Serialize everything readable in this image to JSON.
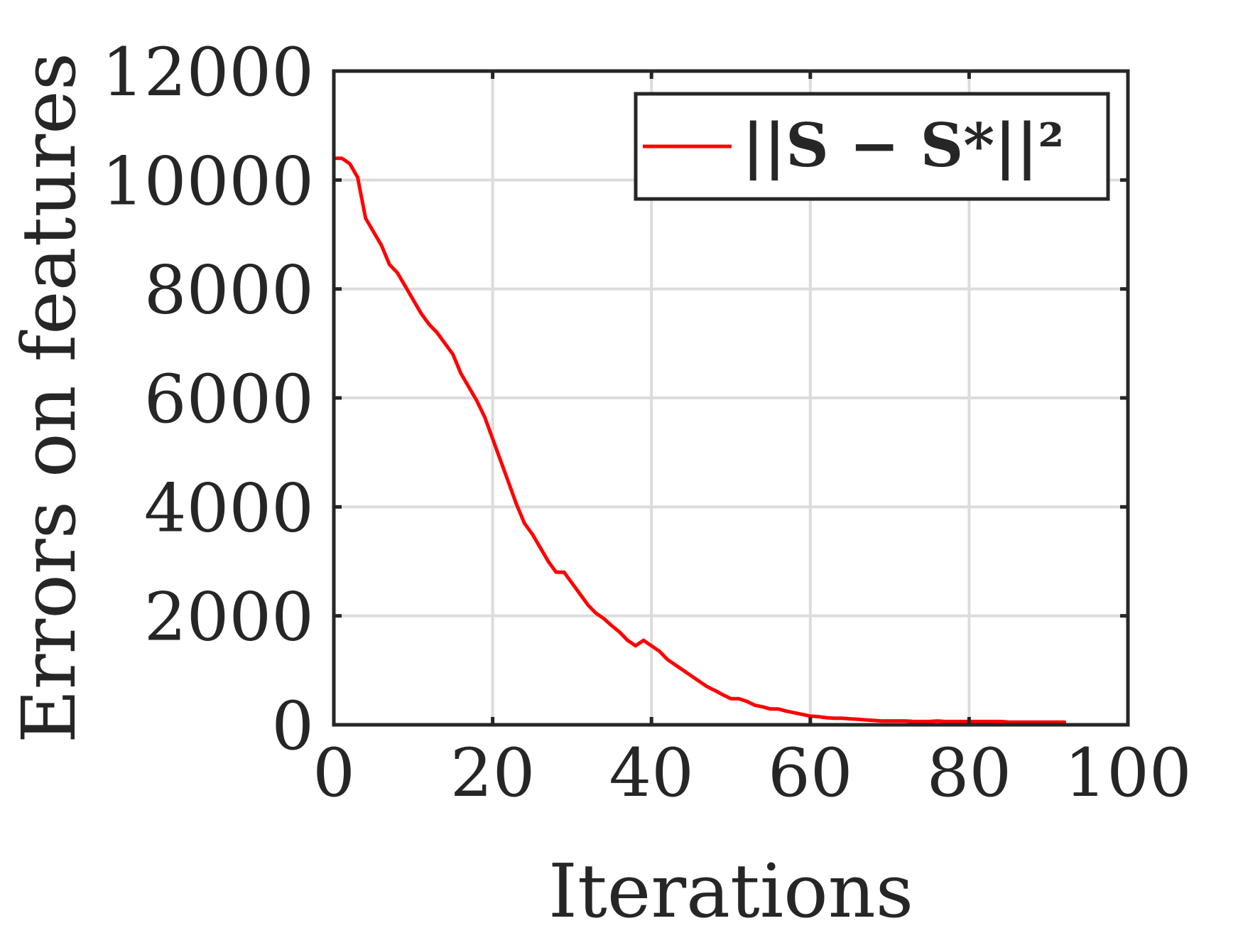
{
  "chart_data": {
    "type": "line",
    "title": "",
    "xlabel": "Iterations",
    "ylabel": "Errors on features",
    "xlim": [
      0,
      100
    ],
    "ylim": [
      0,
      12000
    ],
    "xticks": [
      0,
      20,
      40,
      60,
      80,
      100
    ],
    "yticks": [
      0,
      2000,
      4000,
      6000,
      8000,
      10000,
      12000
    ],
    "xtick_labels": [
      "0",
      "20",
      "40",
      "60",
      "80",
      "100"
    ],
    "ytick_labels": [
      "0",
      "2000",
      "4000",
      "6000",
      "8000",
      "10000",
      "12000"
    ],
    "grid": true,
    "legend_position": "top-right",
    "series": [
      {
        "name": "||S − S*||²",
        "color": "#ff0000",
        "x": [
          0,
          1,
          2,
          3,
          4,
          5,
          6,
          7,
          8,
          9,
          10,
          11,
          12,
          13,
          14,
          15,
          16,
          17,
          18,
          19,
          20,
          21,
          22,
          23,
          24,
          25,
          26,
          27,
          28,
          29,
          30,
          31,
          32,
          33,
          34,
          35,
          36,
          37,
          38,
          39,
          40,
          41,
          42,
          43,
          44,
          45,
          46,
          47,
          48,
          49,
          50,
          51,
          52,
          53,
          54,
          55,
          56,
          57,
          58,
          59,
          60,
          61,
          62,
          63,
          64,
          65,
          66,
          67,
          68,
          69,
          70,
          71,
          72,
          73,
          74,
          75,
          76,
          77,
          78,
          79,
          80,
          81,
          82,
          83,
          84,
          85,
          86,
          87,
          88,
          89,
          90,
          91,
          92
        ],
        "y": [
          10400,
          10400,
          10300,
          10050,
          9300,
          9050,
          8800,
          8450,
          8300,
          8050,
          7800,
          7550,
          7350,
          7200,
          7000,
          6800,
          6450,
          6200,
          5950,
          5650,
          5250,
          4850,
          4450,
          4050,
          3700,
          3500,
          3250,
          3000,
          2800,
          2800,
          2600,
          2400,
          2200,
          2050,
          1950,
          1820,
          1700,
          1550,
          1450,
          1550,
          1450,
          1350,
          1200,
          1100,
          1000,
          900,
          800,
          700,
          630,
          550,
          480,
          480,
          430,
          360,
          330,
          290,
          290,
          250,
          220,
          190,
          160,
          150,
          130,
          120,
          120,
          110,
          100,
          90,
          80,
          70,
          70,
          70,
          70,
          60,
          60,
          60,
          70,
          60,
          60,
          60,
          60,
          60,
          60,
          60,
          60,
          50,
          50,
          50,
          50,
          50,
          50,
          50,
          50
        ]
      }
    ]
  }
}
